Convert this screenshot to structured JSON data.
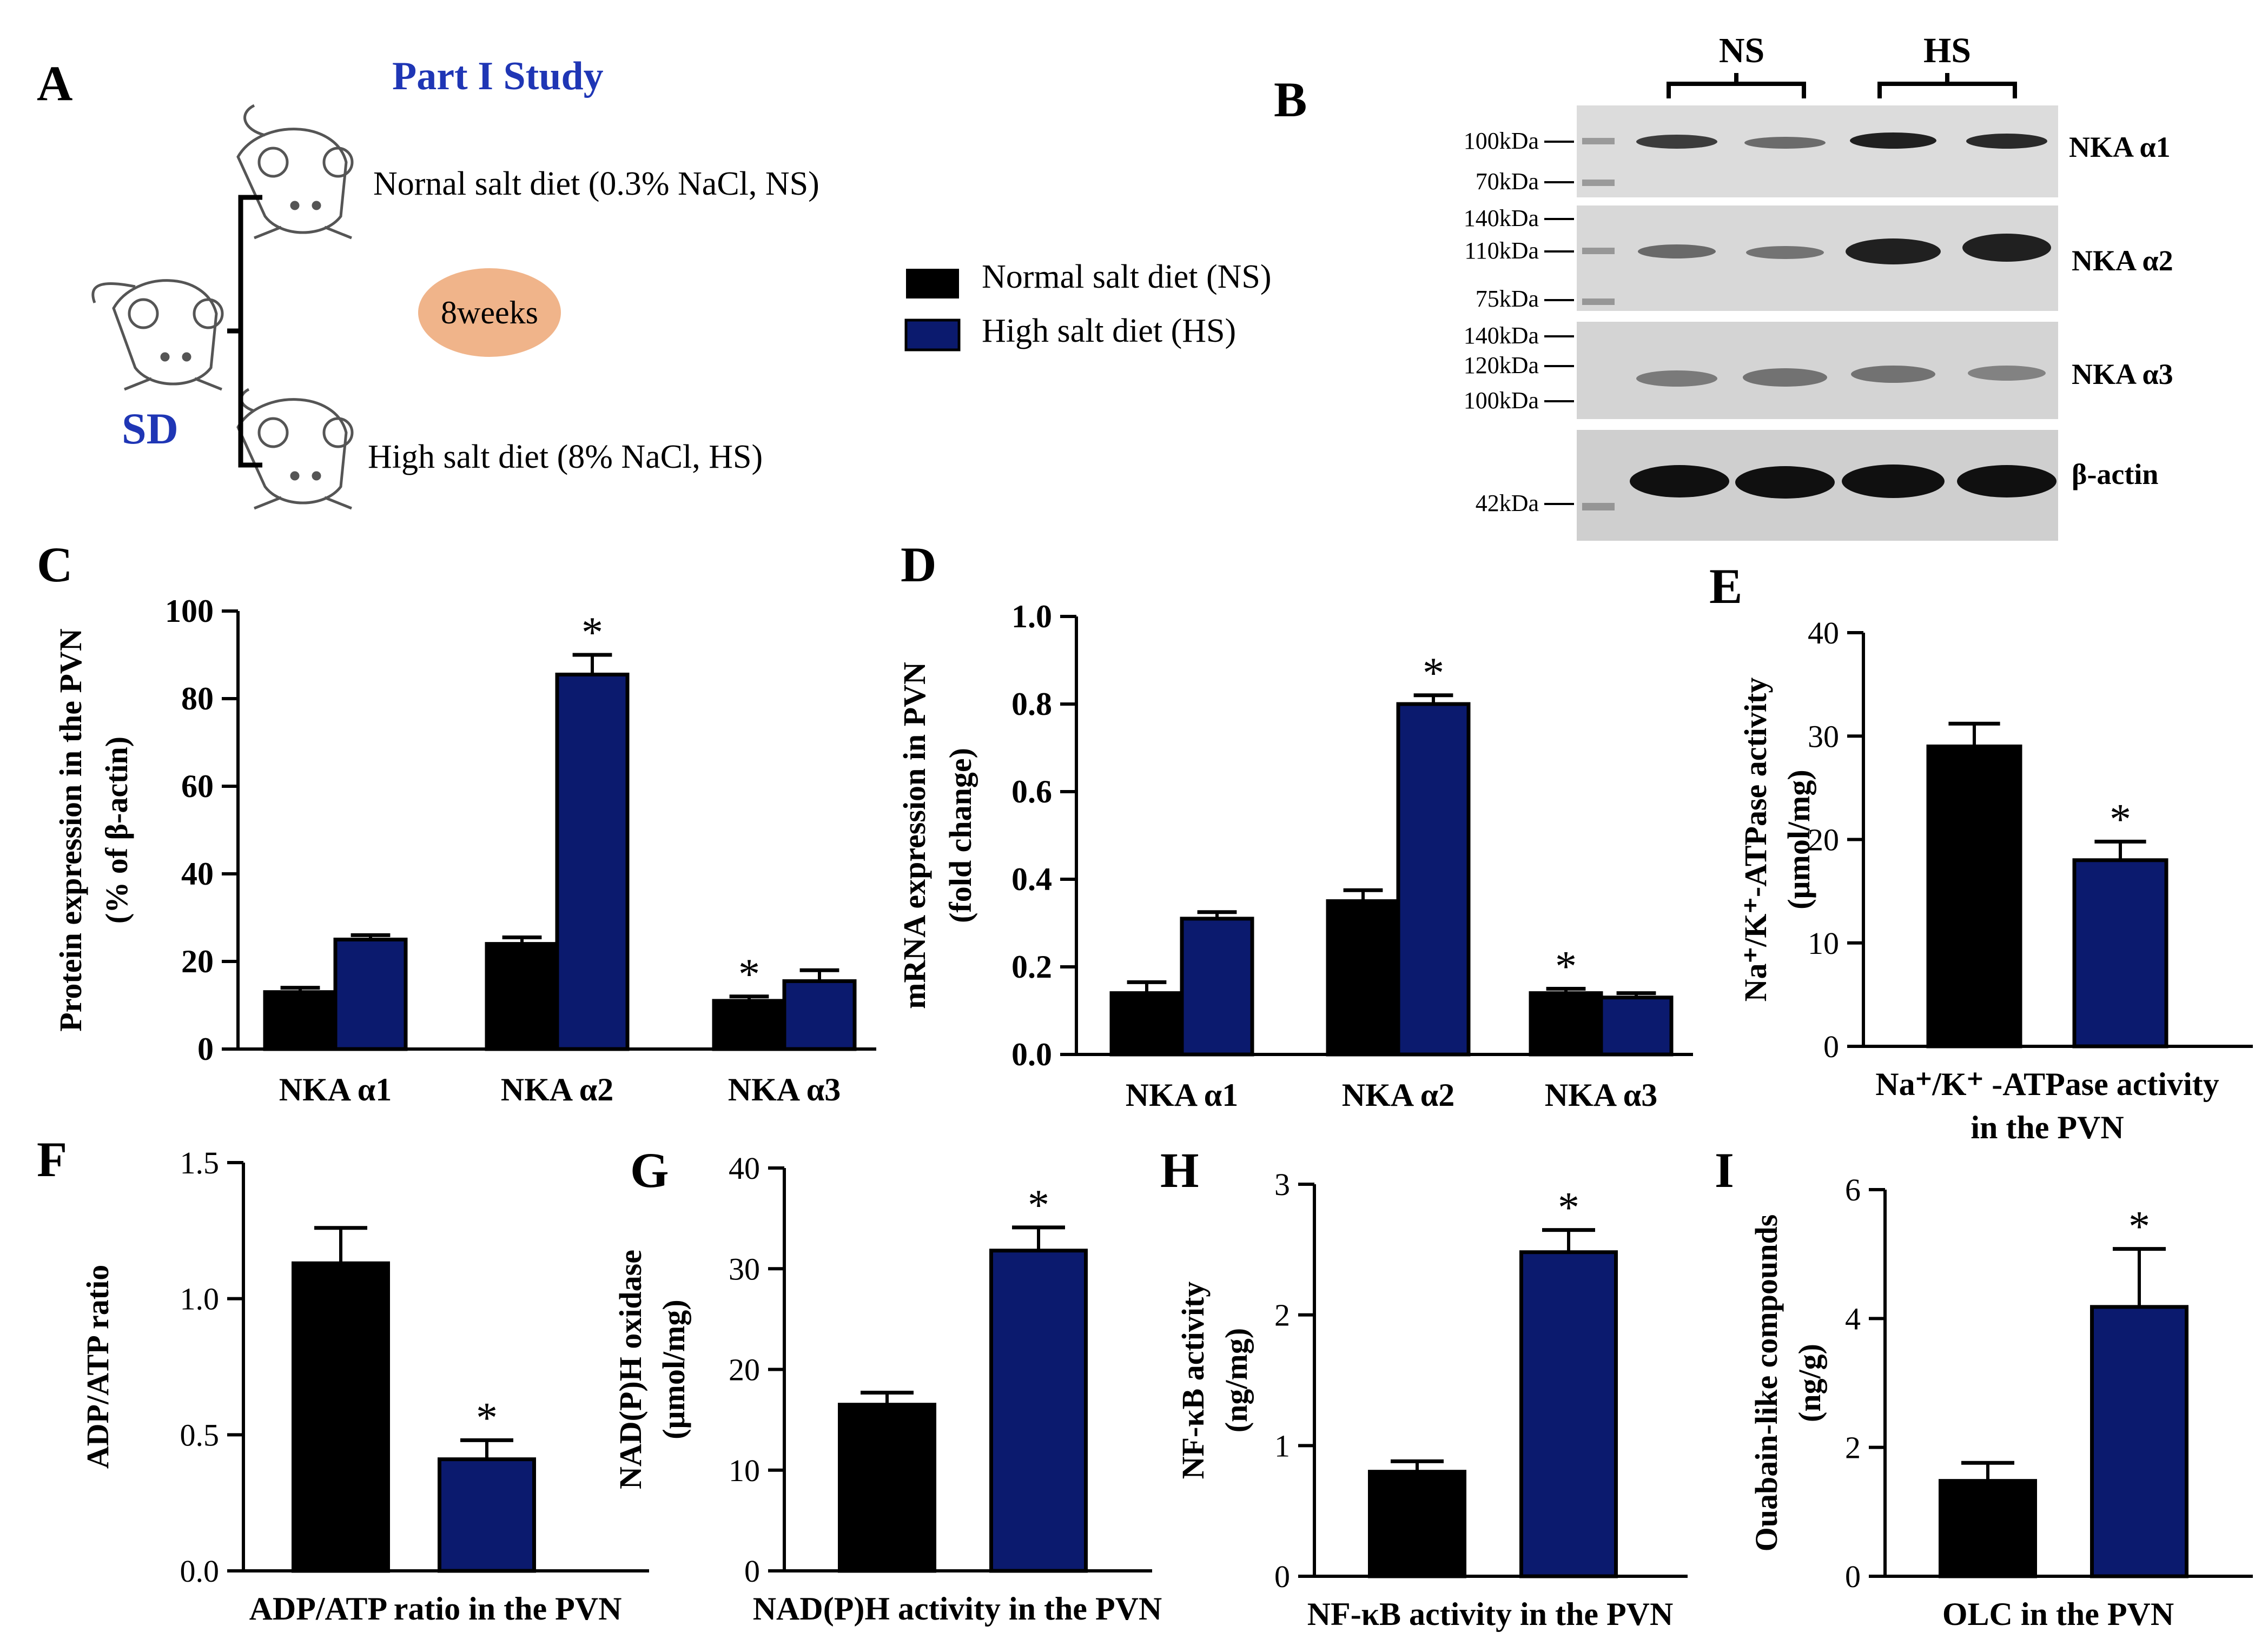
{
  "colors": {
    "ns": "#000000",
    "hs": "#0b1a6e",
    "title": "#1f36b5",
    "oval": "#f0b48a",
    "blot": "#d2d2d2"
  },
  "panel_a": {
    "letter": "A",
    "study_title": "Part I  Study",
    "sd_label": "SD",
    "ns_diet": "Nornal salt diet (0.3% NaCl, NS)",
    "hs_diet": "High salt diet (8% NaCl, HS)",
    "duration": "8weeks"
  },
  "legend": {
    "ns": "Normal salt diet (NS)",
    "hs": "High salt diet (HS)"
  },
  "panel_b": {
    "letter": "B",
    "group_ns": "NS",
    "group_hs": "HS",
    "blots": [
      {
        "label": "NKA α1",
        "markers": [
          "100kDa",
          "70kDa"
        ]
      },
      {
        "label": "NKA α2",
        "markers": [
          "140kDa",
          "110kDa",
          "75kDa"
        ]
      },
      {
        "label": "NKA α3",
        "markers": [
          "140kDa",
          "120kDa",
          "100kDa"
        ]
      },
      {
        "label": "β-actin",
        "markers": [
          "42kDa"
        ]
      }
    ]
  },
  "chart_data": [
    {
      "id": "C",
      "type": "bar",
      "categories": [
        "NKA α1",
        "NKA α2",
        "NKA α3"
      ],
      "series": [
        {
          "name": "NS",
          "values": [
            13,
            24,
            11
          ],
          "errors": [
            1,
            1.5,
            1
          ]
        },
        {
          "name": "HS",
          "values": [
            25,
            85.5,
            15.5
          ],
          "errors": [
            1,
            4.5,
            2.5
          ]
        }
      ],
      "significant": [
        false,
        false,
        false,
        true,
        true,
        false
      ],
      "ylim": [
        0,
        100
      ],
      "yticks": [
        0,
        20,
        40,
        60,
        80,
        100
      ],
      "ylabel": [
        "Protein expression in the PVN",
        "(%  of  β-actin)"
      ],
      "xlabel": ""
    },
    {
      "id": "D",
      "type": "bar",
      "categories": [
        "NKA α1",
        "NKA α2",
        "NKA α3"
      ],
      "series": [
        {
          "name": "NS",
          "values": [
            0.14,
            0.35,
            0.14
          ],
          "errors": [
            0.025,
            0.025,
            0.01
          ]
        },
        {
          "name": "HS",
          "values": [
            0.31,
            0.8,
            0.13
          ],
          "errors": [
            0.015,
            0.02,
            0.01
          ]
        }
      ],
      "significant": [
        false,
        false,
        false,
        true,
        true,
        false
      ],
      "ylim": [
        0,
        1.0
      ],
      "yticks": [
        "0.0",
        "0.2",
        "0.4",
        "0.6",
        "0.8",
        "1.0"
      ],
      "ylabel": [
        "mRNA expression in PVN",
        "(fold change)"
      ],
      "xlabel": ""
    },
    {
      "id": "E",
      "type": "bar",
      "categories": [
        "NS",
        "HS"
      ],
      "values": [
        29,
        18
      ],
      "errors": [
        2.2,
        1.8
      ],
      "significant": [
        false,
        true
      ],
      "ylim": [
        0,
        40
      ],
      "yticks": [
        0,
        10,
        20,
        30,
        40
      ],
      "ylabel": [
        "Na⁺/K⁺-ATPase activity",
        "(μmol/mg)"
      ],
      "xlabel": [
        "Na⁺/K⁺ -ATPase activity",
        "in the PVN"
      ]
    },
    {
      "id": "F",
      "type": "bar",
      "categories": [
        "NS",
        "HS"
      ],
      "values": [
        1.13,
        0.41
      ],
      "errors": [
        0.13,
        0.07
      ],
      "significant": [
        false,
        true
      ],
      "ylim": [
        0,
        1.5
      ],
      "yticks": [
        "0.0",
        "0.5",
        "1.0",
        "1.5"
      ],
      "ylabel": [
        "ADP/ATP ratio"
      ],
      "xlabel": [
        "ADP/ATP  ratio in the PVN"
      ]
    },
    {
      "id": "G",
      "type": "bar",
      "categories": [
        "NS",
        "HS"
      ],
      "values": [
        16.5,
        31.8
      ],
      "errors": [
        1.2,
        2.3
      ],
      "significant": [
        false,
        true
      ],
      "ylim": [
        0,
        40
      ],
      "yticks": [
        0,
        10,
        20,
        30,
        40
      ],
      "ylabel": [
        "NAD(P)H oxidase",
        "(μmol/mg)"
      ],
      "xlabel": [
        "NAD(P)H activity in the PVN"
      ]
    },
    {
      "id": "H",
      "type": "bar",
      "categories": [
        "NS",
        "HS"
      ],
      "values": [
        0.8,
        2.48
      ],
      "errors": [
        0.08,
        0.17
      ],
      "significant": [
        false,
        true
      ],
      "ylim": [
        0,
        3
      ],
      "yticks": [
        0,
        1,
        2,
        3
      ],
      "ylabel": [
        "NF-κB activity",
        "(ng/mg)"
      ],
      "xlabel": [
        "NF-κB activity in the PVN"
      ]
    },
    {
      "id": "I",
      "type": "bar",
      "categories": [
        "NS",
        "HS"
      ],
      "values": [
        1.48,
        4.18
      ],
      "errors": [
        0.28,
        0.9
      ],
      "significant": [
        false,
        true
      ],
      "ylim": [
        0,
        6
      ],
      "yticks": [
        0,
        2,
        4,
        6
      ],
      "ylabel": [
        "Ouabain-like compounds",
        "(ng/g)"
      ],
      "xlabel": [
        "OLC in the PVN"
      ]
    }
  ]
}
